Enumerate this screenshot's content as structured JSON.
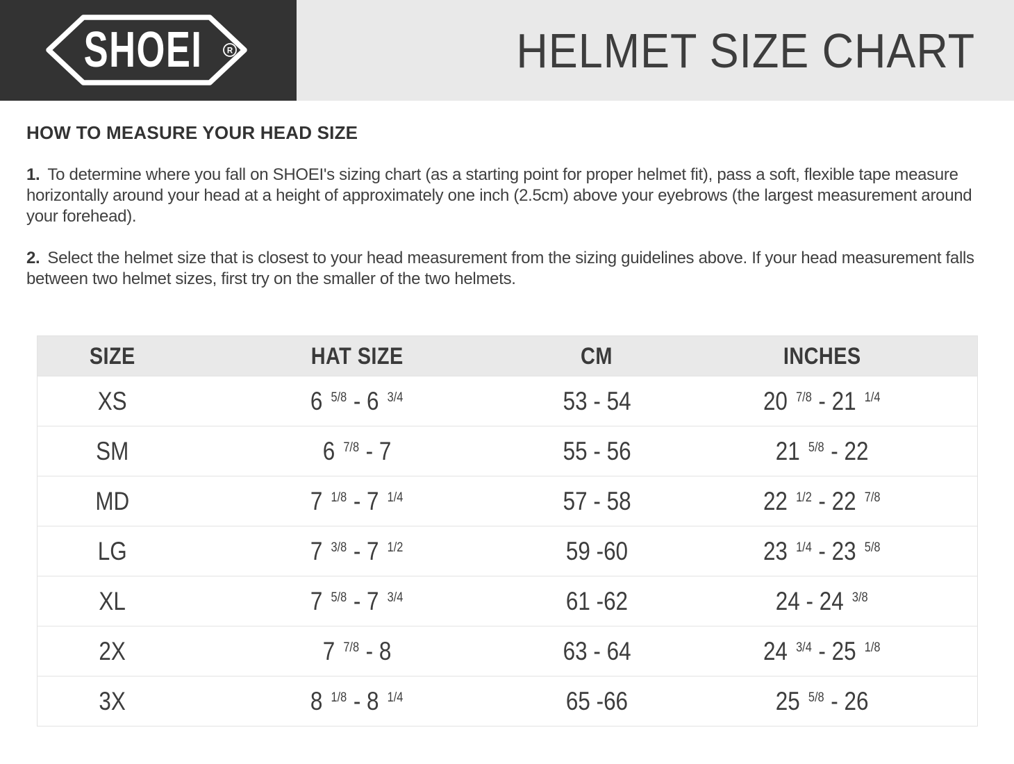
{
  "header": {
    "logo": {
      "brand": "SHOEI",
      "registered": "R"
    },
    "title": "HELMET SIZE CHART"
  },
  "instructions": {
    "heading": "HOW TO MEASURE YOUR HEAD SIZE",
    "steps": [
      {
        "number": "1.",
        "text": "To determine where you fall on SHOEI's sizing chart (as a starting point for proper helmet fit), pass a soft, flexible tape measure horizontally around your head at a height of approximately one inch (2.5cm) above your eyebrows (the largest measurement around your forehead)."
      },
      {
        "number": "2.",
        "text": "Select the helmet size that is closest to your head measurement from the sizing guidelines above. If your head measurement falls between two helmet sizes, first try on the smaller of the two helmets."
      }
    ]
  },
  "size_table": {
    "headers": [
      "SIZE",
      "HAT SIZE",
      "CM",
      "INCHES"
    ],
    "rows": [
      {
        "size": "XS",
        "hat_size": "6 5/8 - 6 3/4",
        "cm": "53 - 54",
        "inches": "20 7/8 - 21 1/4"
      },
      {
        "size": "SM",
        "hat_size": "6 7/8 - 7",
        "cm": "55 - 56",
        "inches": "21 5/8 - 22"
      },
      {
        "size": "MD",
        "hat_size": "7 1/8 - 7 1/4",
        "cm": "57 - 58",
        "inches": "22 1/2 - 22 7/8"
      },
      {
        "size": "LG",
        "hat_size": "7 3/8 - 7 1/2",
        "cm": "59 -60",
        "inches": "23 1/4 - 23 5/8"
      },
      {
        "size": "XL",
        "hat_size": "7 5/8 - 7 3/4",
        "cm": "61 -62",
        "inches": "24 - 24 3/8"
      },
      {
        "size": "2X",
        "hat_size": "7 7/8 - 8",
        "cm": "63 - 64",
        "inches": "24 3/4 - 25 1/8"
      },
      {
        "size": "3X",
        "hat_size": "8 1/8 - 8 1/4",
        "cm": "65 -66",
        "inches": "25 5/8 - 26"
      }
    ]
  },
  "colors": {
    "logo_background": "#333333",
    "title_band_background": "#e9e9e9",
    "table_header_background": "#e9e9e9",
    "text": "#3d3d3d",
    "row_divider": "#e3e3e3"
  }
}
